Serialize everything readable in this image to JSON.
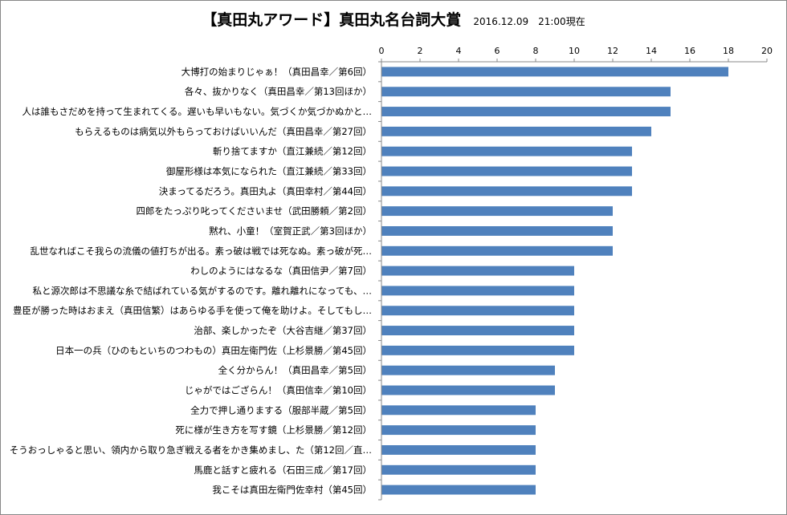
{
  "chart_data": {
    "type": "bar",
    "orientation": "horizontal",
    "title": "【真田丸アワード】真田丸名台詞大賞",
    "subtitle": "2016.12.09　21:00現在",
    "xlim": [
      0,
      20
    ],
    "x_ticks": [
      0,
      2,
      4,
      6,
      8,
      10,
      12,
      14,
      16,
      18,
      20
    ],
    "x_axis_position": "top",
    "grid": false,
    "legend": "none",
    "bar_color": "#4F81BD",
    "categories": [
      "大博打の始まりじゃぁ！（真田昌幸／第6回）",
      "各々、抜かりなく（真田昌幸／第13回ほか）",
      "人は誰もさだめを持って生まれてくる。遅いも早いもない。気づくか気づかぬかと…",
      "もらえるものは病気以外もらっておけばいいんだ（真田昌幸／第27回）",
      "斬り捨てますか（直江兼続／第12回）",
      "御屋形様は本気になられた（直江兼続／第33回）",
      "決まってるだろう。真田丸よ（真田幸村／第44回）",
      "四郎をたっぷり叱ってくださいませ（武田勝頼／第2回）",
      "黙れ、小童！（室賀正武／第3回ほか）",
      "乱世なればこそ我らの流儀の値打ちが出る。素っ破は戦では死なぬ。素っ破が死…",
      "わしのようにはなるな（真田信尹／第7回）",
      "私と源次郎は不思議な糸で結ばれている気がするのです。離れ離れになっても、…",
      "豊臣が勝った時はおまえ（真田信繁）はあらゆる手を使って俺を助けよ。そしてもし…",
      "治部、楽しかったぞ（大谷吉継／第37回）",
      "日本一の兵（ひのもといちのつわもの）真田左衛門佐（上杉景勝／第45回）",
      "全く分からん！（真田昌幸／第5回）",
      "じゃがではござらん！（真田信幸／第10回）",
      "全力で押し通りまする（服部半蔵／第5回）",
      "死に様が生き方を写す鏡（上杉景勝／第12回）",
      "そうおっしゃると思い、領内から取り急ぎ戦える者をかき集めまし、た（第12回／直…",
      "馬鹿と話すと疲れる（石田三成／第17回）",
      "我こそは真田左衛門佐幸村（第45回）"
    ],
    "values": [
      18,
      15,
      15,
      14,
      13,
      13,
      13,
      12,
      12,
      12,
      10,
      10,
      10,
      10,
      10,
      9,
      9,
      8,
      8,
      8,
      8,
      8
    ]
  }
}
